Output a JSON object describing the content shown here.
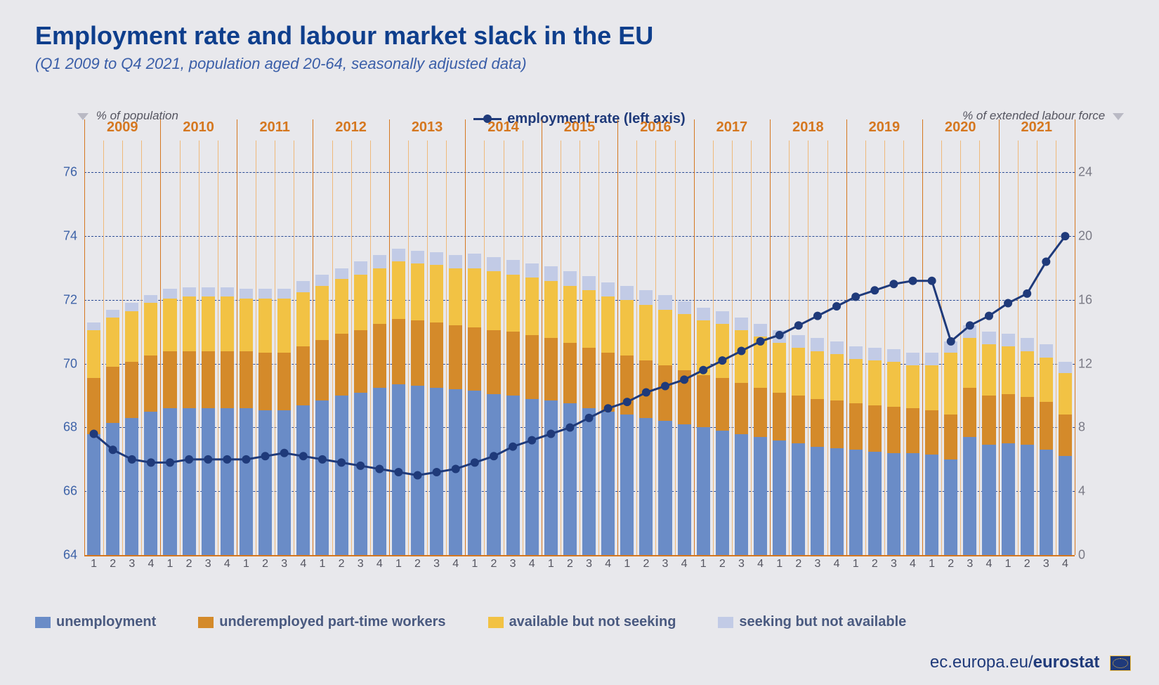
{
  "title": "Employment rate and labour market slack in the EU",
  "subtitle": "(Q1 2009 to Q4 2021, population aged 20-64, seasonally adjusted data)",
  "title_color": "#0e3e8c",
  "subtitle_color": "#3a5ea8",
  "title_fontsize": 36,
  "subtitle_fontsize": 22,
  "background_color": "#e8e8ec",
  "left_axis": {
    "label": "% of population",
    "label_color": "#555560",
    "min": 64,
    "max": 77,
    "ticks": [
      64,
      66,
      68,
      70,
      72,
      74,
      76
    ],
    "tick_color": "#3e63a8",
    "grid_ticks": [
      66,
      68,
      70,
      72,
      74,
      76
    ],
    "grid_color": "#2b4b94"
  },
  "right_axis": {
    "label": "% of extended labour force",
    "label_color": "#555560",
    "min": 0,
    "max": 26,
    "ticks": [
      0,
      4,
      8,
      12,
      16,
      20,
      24
    ],
    "tick_color": "#7a7a85"
  },
  "years": {
    "list": [
      2009,
      2010,
      2011,
      2012,
      2013,
      2014,
      2015,
      2016,
      2017,
      2018,
      2019,
      2020,
      2021
    ],
    "quarters": [
      1,
      2,
      3,
      4
    ],
    "year_color": "#d5771f",
    "sep_color": "#d5771f",
    "quarter_sep_color": "#efb97a",
    "quarter_label_color": "#555560",
    "baseline_color": "#d5771f"
  },
  "line_series": {
    "name": "employment rate (left axis)",
    "color": "#1f3a7a",
    "marker_radius": 6,
    "line_width": 3,
    "values": [
      67.8,
      67.3,
      67.0,
      66.9,
      66.9,
      67.0,
      67.0,
      67.0,
      67.0,
      67.1,
      67.2,
      67.1,
      67.0,
      66.9,
      66.8,
      66.7,
      66.6,
      66.5,
      66.6,
      66.7,
      66.9,
      67.1,
      67.4,
      67.6,
      67.8,
      68.0,
      68.3,
      68.6,
      68.8,
      69.1,
      69.3,
      69.5,
      69.8,
      70.1,
      70.4,
      70.7,
      70.9,
      71.2,
      71.5,
      71.8,
      72.1,
      72.3,
      72.5,
      72.6,
      72.6,
      70.7,
      71.2,
      71.5,
      71.9,
      72.2,
      73.2,
      74.0
    ]
  },
  "stack_series": {
    "type": "stacked-bar",
    "axis": "right",
    "bar_width": 0.86,
    "layers": [
      {
        "key": "unemployment",
        "label": "unemployment",
        "color": "#6a8cc7"
      },
      {
        "key": "underemployed",
        "label": "underemployed part-time workers",
        "color": "#d48a2a"
      },
      {
        "key": "available",
        "label": "available but not seeking",
        "color": "#f2c244"
      },
      {
        "key": "seeking",
        "label": "seeking but not available",
        "color": "#c2cbe6"
      }
    ],
    "values": {
      "unemployment": [
        7.6,
        8.3,
        8.6,
        9.0,
        9.2,
        9.2,
        9.2,
        9.2,
        9.2,
        9.1,
        9.1,
        9.4,
        9.7,
        10.0,
        10.2,
        10.5,
        10.7,
        10.6,
        10.5,
        10.4,
        10.3,
        10.1,
        10.0,
        9.8,
        9.7,
        9.5,
        9.2,
        9.0,
        8.8,
        8.6,
        8.4,
        8.2,
        8.0,
        7.8,
        7.6,
        7.4,
        7.2,
        7.0,
        6.8,
        6.7,
        6.6,
        6.5,
        6.4,
        6.4,
        6.3,
        6.0,
        7.4,
        6.9,
        7.0,
        6.9,
        6.6,
        6.2
      ],
      "underemployed": [
        3.5,
        3.5,
        3.5,
        3.5,
        3.6,
        3.6,
        3.6,
        3.6,
        3.6,
        3.6,
        3.6,
        3.7,
        3.8,
        3.9,
        3.9,
        4.0,
        4.1,
        4.1,
        4.1,
        4.0,
        4.0,
        4.0,
        4.0,
        4.0,
        3.9,
        3.8,
        3.8,
        3.7,
        3.7,
        3.6,
        3.5,
        3.4,
        3.3,
        3.3,
        3.2,
        3.1,
        3.0,
        3.0,
        3.0,
        3.0,
        2.9,
        2.9,
        2.9,
        2.8,
        2.8,
        2.8,
        3.1,
        3.1,
        3.1,
        3.0,
        3.0,
        2.6
      ],
      "available": [
        3.0,
        3.1,
        3.2,
        3.3,
        3.3,
        3.4,
        3.4,
        3.4,
        3.3,
        3.4,
        3.4,
        3.4,
        3.4,
        3.4,
        3.5,
        3.5,
        3.6,
        3.6,
        3.6,
        3.6,
        3.7,
        3.7,
        3.6,
        3.6,
        3.6,
        3.6,
        3.6,
        3.5,
        3.5,
        3.5,
        3.5,
        3.5,
        3.4,
        3.4,
        3.3,
        3.2,
        3.1,
        3.0,
        3.0,
        2.9,
        2.8,
        2.8,
        2.8,
        2.7,
        2.8,
        3.9,
        3.1,
        3.2,
        3.0,
        2.9,
        2.8,
        2.6
      ],
      "seeking": [
        0.5,
        0.5,
        0.5,
        0.5,
        0.6,
        0.6,
        0.6,
        0.6,
        0.6,
        0.6,
        0.6,
        0.7,
        0.7,
        0.7,
        0.8,
        0.8,
        0.8,
        0.8,
        0.8,
        0.8,
        0.9,
        0.9,
        0.9,
        0.9,
        0.9,
        0.9,
        0.9,
        0.9,
        0.9,
        0.9,
        0.9,
        0.8,
        0.8,
        0.8,
        0.8,
        0.8,
        0.8,
        0.8,
        0.8,
        0.8,
        0.8,
        0.8,
        0.8,
        0.8,
        0.8,
        0.7,
        0.8,
        0.8,
        0.8,
        0.8,
        0.8,
        0.7
      ]
    }
  },
  "footer": {
    "text_plain": "ec.europa.eu/",
    "text_bold": "eurostat",
    "color": "#1f3a7a",
    "logo_bg": "#1f3a7a"
  }
}
